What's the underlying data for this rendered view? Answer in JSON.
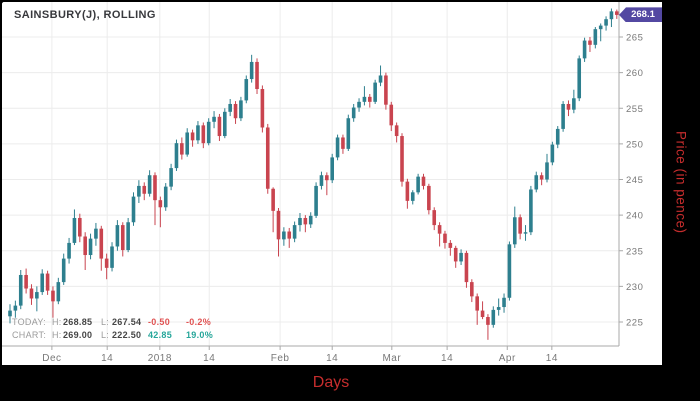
{
  "header": {
    "title": "SAINSBURY(J), ROLLING"
  },
  "axes": {
    "y_title": "Price (in pence)",
    "x_title": "Days"
  },
  "price_badge": {
    "label": "268.1",
    "color": "#5348a2",
    "text_color": "#ffffff"
  },
  "legend": {
    "rows": [
      {
        "label": "TODAY:",
        "h_label": "H:",
        "h": "268.85",
        "l_label": "L:",
        "l": "267.54",
        "change": "-0.50",
        "change_pct": "-0.2%",
        "change_color": "#e05252"
      },
      {
        "label": "CHART:",
        "h_label": "H:",
        "h": "269.00",
        "l_label": "L:",
        "l": "222.50",
        "change": "42.85",
        "change_pct": "19.0%",
        "change_color": "#26a69a"
      }
    ]
  },
  "colors": {
    "up": "#2d7f8e",
    "down": "#c9444f",
    "grid": "#ececec",
    "axis_line": "#a9a9a9",
    "tick_text": "#787878",
    "title_text": "#37383c",
    "frame": "#000000",
    "panel": "#ffffff",
    "axis_title_red": "#c62d2d",
    "badge_bg": "#5348a2"
  },
  "chart_data": {
    "type": "candlestick",
    "title": "SAINSBURY(J), ROLLING",
    "xlabel": "Days",
    "ylabel": "Price (in pence)",
    "ylim": [
      221.5,
      269.7
    ],
    "y_ticks": [
      225,
      230,
      235,
      240,
      245,
      250,
      255,
      260,
      265
    ],
    "x_ticks": [
      {
        "label": "Dec",
        "i": 7.8
      },
      {
        "label": "14",
        "i": 18.1
      },
      {
        "label": "2018",
        "i": 27.9
      },
      {
        "label": "14",
        "i": 37.1
      },
      {
        "label": "Feb",
        "i": 50.3
      },
      {
        "label": "14",
        "i": 60.0
      },
      {
        "label": "Mar",
        "i": 71.1
      },
      {
        "label": "14",
        "i": 81.4
      },
      {
        "label": "Apr",
        "i": 92.6
      },
      {
        "label": "14",
        "i": 100.9
      }
    ],
    "last_price": 268.1,
    "today": {
      "high": 268.85,
      "low": 267.54,
      "change": -0.5,
      "change_pct": -0.2
    },
    "chart_range": {
      "high": 269.0,
      "low": 222.5,
      "change": 42.85,
      "change_pct": 19.0
    },
    "candles_ohlc": [
      [
        225.8,
        227.5,
        224.8,
        226.6
      ],
      [
        226.6,
        228.0,
        225.6,
        227.3
      ],
      [
        227.3,
        232.3,
        226.8,
        231.6
      ],
      [
        231.6,
        232.5,
        229.0,
        229.7
      ],
      [
        229.7,
        230.3,
        227.4,
        228.3
      ],
      [
        228.3,
        230.0,
        226.5,
        229.2
      ],
      [
        229.2,
        232.4,
        228.8,
        231.8
      ],
      [
        231.8,
        232.2,
        228.8,
        229.4
      ],
      [
        229.4,
        230.0,
        225.6,
        227.9
      ],
      [
        227.9,
        231.2,
        227.5,
        230.6
      ],
      [
        230.6,
        234.6,
        230.2,
        233.9
      ],
      [
        233.9,
        236.8,
        233.2,
        236.1
      ],
      [
        236.1,
        240.8,
        235.8,
        239.6
      ],
      [
        239.6,
        240.2,
        236.2,
        237.0
      ],
      [
        237.0,
        237.6,
        232.3,
        234.4
      ],
      [
        234.4,
        237.4,
        233.8,
        236.7
      ],
      [
        236.7,
        238.9,
        235.7,
        238.1
      ],
      [
        238.1,
        238.5,
        232.2,
        233.9
      ],
      [
        233.9,
        234.6,
        231.0,
        232.6
      ],
      [
        232.6,
        236.2,
        232.1,
        235.6
      ],
      [
        235.6,
        239.3,
        235.0,
        238.6
      ],
      [
        238.6,
        239.0,
        234.2,
        235.1
      ],
      [
        235.1,
        239.6,
        234.8,
        239.0
      ],
      [
        239.0,
        243.2,
        238.5,
        242.6
      ],
      [
        242.6,
        244.9,
        241.7,
        244.1
      ],
      [
        244.1,
        244.6,
        242.1,
        243.0
      ],
      [
        243.0,
        246.3,
        242.6,
        245.6
      ],
      [
        245.6,
        246.0,
        238.6,
        242.1
      ],
      [
        242.1,
        242.6,
        238.3,
        241.1
      ],
      [
        241.1,
        244.5,
        240.6,
        244.0
      ],
      [
        244.0,
        247.2,
        243.5,
        246.6
      ],
      [
        246.6,
        250.6,
        246.2,
        250.1
      ],
      [
        250.1,
        250.9,
        247.8,
        248.5
      ],
      [
        248.5,
        252.2,
        248.2,
        251.6
      ],
      [
        251.6,
        252.0,
        249.6,
        250.5
      ],
      [
        250.5,
        253.2,
        250.0,
        252.6
      ],
      [
        252.6,
        253.0,
        249.4,
        250.1
      ],
      [
        250.1,
        253.6,
        249.8,
        253.1
      ],
      [
        253.1,
        254.6,
        252.2,
        253.8
      ],
      [
        253.8,
        254.2,
        250.4,
        251.1
      ],
      [
        251.1,
        255.0,
        250.8,
        254.5
      ],
      [
        254.5,
        256.3,
        253.9,
        255.6
      ],
      [
        255.6,
        256.0,
        252.8,
        253.6
      ],
      [
        253.6,
        256.6,
        253.2,
        256.1
      ],
      [
        256.1,
        259.6,
        255.7,
        259.1
      ],
      [
        259.1,
        262.5,
        258.6,
        261.5
      ],
      [
        261.5,
        262.0,
        257.0,
        257.7
      ],
      [
        257.7,
        258.2,
        251.6,
        252.3
      ],
      [
        252.3,
        252.8,
        243.0,
        243.7
      ],
      [
        243.7,
        243.9,
        237.6,
        240.6
      ],
      [
        240.6,
        241.0,
        234.2,
        236.6
      ],
      [
        236.6,
        238.3,
        235.7,
        237.7
      ],
      [
        237.7,
        238.2,
        235.4,
        236.7
      ],
      [
        236.7,
        239.1,
        236.2,
        238.6
      ],
      [
        238.6,
        240.3,
        237.7,
        239.6
      ],
      [
        239.6,
        240.0,
        237.6,
        238.7
      ],
      [
        238.7,
        240.4,
        238.2,
        239.9
      ],
      [
        239.9,
        244.6,
        239.6,
        244.1
      ],
      [
        244.1,
        246.1,
        243.6,
        245.6
      ],
      [
        245.6,
        246.0,
        242.8,
        244.9
      ],
      [
        244.9,
        248.6,
        244.5,
        248.1
      ],
      [
        248.1,
        251.3,
        247.7,
        250.9
      ],
      [
        250.9,
        251.3,
        248.6,
        249.3
      ],
      [
        249.3,
        254.1,
        249.0,
        253.6
      ],
      [
        253.6,
        255.6,
        253.1,
        255.1
      ],
      [
        255.1,
        256.4,
        254.5,
        255.9
      ],
      [
        255.9,
        258.1,
        255.4,
        256.6
      ],
      [
        256.6,
        257.0,
        255.1,
        255.9
      ],
      [
        255.9,
        259.0,
        255.6,
        258.6
      ],
      [
        258.6,
        261.0,
        258.1,
        259.6
      ],
      [
        259.6,
        260.0,
        254.8,
        255.5
      ],
      [
        255.5,
        255.9,
        251.8,
        252.6
      ],
      [
        252.6,
        253.0,
        250.2,
        251.1
      ],
      [
        251.1,
        251.5,
        244.0,
        244.7
      ],
      [
        244.7,
        245.1,
        240.9,
        242.0
      ],
      [
        242.0,
        243.5,
        241.5,
        243.2
      ],
      [
        243.2,
        245.8,
        242.9,
        245.4
      ],
      [
        245.4,
        245.8,
        243.6,
        244.1
      ],
      [
        244.1,
        244.4,
        240.1,
        240.7
      ],
      [
        240.7,
        241.1,
        237.9,
        238.6
      ],
      [
        238.6,
        239.0,
        235.6,
        237.4
      ],
      [
        237.4,
        237.8,
        235.3,
        236.1
      ],
      [
        236.1,
        236.5,
        234.3,
        235.4
      ],
      [
        235.4,
        235.7,
        232.6,
        233.5
      ],
      [
        233.5,
        235.2,
        233.0,
        234.7
      ],
      [
        234.7,
        235.0,
        229.8,
        230.6
      ],
      [
        230.6,
        231.0,
        227.8,
        228.6
      ],
      [
        228.6,
        229.0,
        224.6,
        226.6
      ],
      [
        226.6,
        227.9,
        225.4,
        225.7
      ],
      [
        225.7,
        226.1,
        222.5,
        224.6
      ],
      [
        224.6,
        227.2,
        224.2,
        226.7
      ],
      [
        226.7,
        228.3,
        225.9,
        227.1
      ],
      [
        227.1,
        229.0,
        226.3,
        228.4
      ],
      [
        228.4,
        236.3,
        228.0,
        235.9
      ],
      [
        235.9,
        241.2,
        235.4,
        239.7
      ],
      [
        239.7,
        240.1,
        236.6,
        237.4
      ],
      [
        237.4,
        238.6,
        236.4,
        237.6
      ],
      [
        237.6,
        244.1,
        237.2,
        243.6
      ],
      [
        243.6,
        246.1,
        243.2,
        245.6
      ],
      [
        245.6,
        246.0,
        244.2,
        245.0
      ],
      [
        245.0,
        248.6,
        244.6,
        247.4
      ],
      [
        247.4,
        250.3,
        247.0,
        249.9
      ],
      [
        249.9,
        252.5,
        249.4,
        252.1
      ],
      [
        252.1,
        256.0,
        251.7,
        255.6
      ],
      [
        255.6,
        256.1,
        253.9,
        254.8
      ],
      [
        254.8,
        257.6,
        254.3,
        256.4
      ],
      [
        256.4,
        262.4,
        256.0,
        262.0
      ],
      [
        262.0,
        264.9,
        261.5,
        264.5
      ],
      [
        264.5,
        265.0,
        262.9,
        263.9
      ],
      [
        263.9,
        266.4,
        263.4,
        266.1
      ],
      [
        266.1,
        266.9,
        264.4,
        266.6
      ],
      [
        266.6,
        267.9,
        265.9,
        267.5
      ],
      [
        267.5,
        269.0,
        266.4,
        268.6
      ],
      [
        268.6,
        268.85,
        267.54,
        268.1
      ]
    ]
  }
}
